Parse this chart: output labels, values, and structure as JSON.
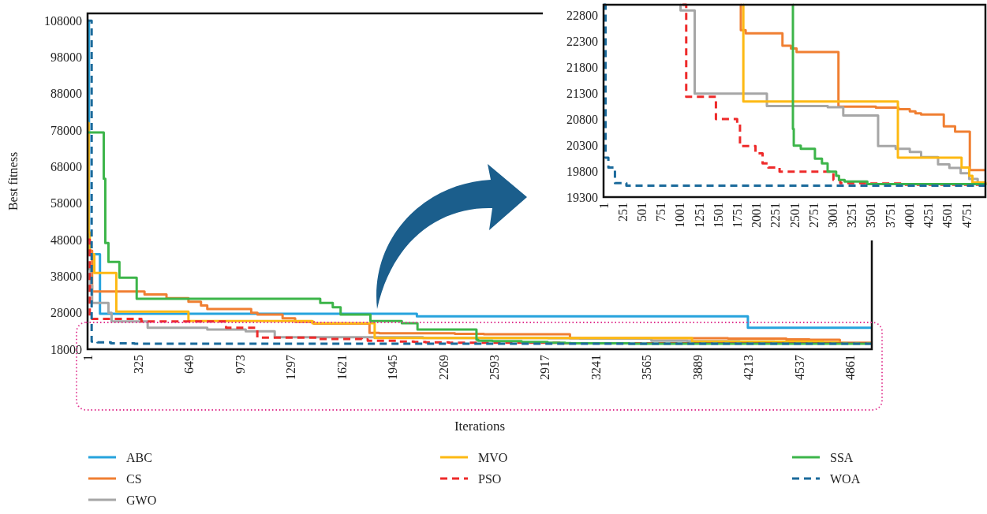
{
  "chart_data": [
    {
      "type": "step",
      "xlabel": "Iterations",
      "ylabel": "Best fitness",
      "xlim": [
        1,
        5000
      ],
      "ylim": [
        18000,
        110000
      ],
      "xticks": [
        1,
        325,
        649,
        973,
        1297,
        1621,
        1945,
        2269,
        2593,
        2917,
        3241,
        3565,
        3889,
        4213,
        4537,
        4861
      ],
      "yticks": [
        18000,
        28000,
        38000,
        48000,
        58000,
        68000,
        78000,
        88000,
        98000,
        108000
      ],
      "legend": "bottom",
      "series": [
        {
          "name": "ABC",
          "color": "#27a3dd",
          "x": [
            1,
            10,
            80,
            2100,
            4210,
            5000
          ],
          "values": [
            108000,
            44000,
            27700,
            27000,
            23900,
            23900
          ]
        },
        {
          "name": "CS",
          "color": "#f07f32",
          "x": [
            1,
            30,
            364,
            504,
            644,
            724,
            764,
            1044,
            1084,
            1244,
            1324,
            1444,
            1798,
            1861,
            2343,
            2454,
            2528,
            3076,
            3566,
            3862,
            4010,
            4084,
            4158,
            4455,
            4603,
            4796,
            5000
          ],
          "values": [
            45000,
            33800,
            33000,
            32000,
            31000,
            30000,
            29000,
            28000,
            27500,
            26500,
            25500,
            25000,
            22500,
            22400,
            22200,
            22200,
            22100,
            21000,
            21000,
            21000,
            21000,
            20900,
            20900,
            20700,
            20600,
            19800,
            19800
          ]
        },
        {
          "name": "GWO",
          "color": "#a6a6a6",
          "x": [
            1,
            20,
            30,
            134,
            154,
            384,
            764,
            1009,
            1194,
            2139,
            2936,
            3139,
            3595,
            3825,
            4010,
            4158,
            4380,
            4528,
            4676,
            4788,
            4899,
            5000
          ],
          "values": [
            40000,
            35500,
            30700,
            28000,
            25600,
            23900,
            23400,
            22900,
            21300,
            21100,
            21000,
            20900,
            20300,
            20200,
            20200,
            20100,
            19900,
            19900,
            19800,
            19700,
            19600,
            19600
          ]
        },
        {
          "name": "MVO",
          "color": "#fdb913",
          "x": [
            1,
            8,
            15,
            44,
            184,
            644,
            1434,
            1831,
            3854,
            4688,
            4788,
            4830,
            5000
          ],
          "values": [
            80000,
            50000,
            44000,
            38900,
            28300,
            25700,
            25100,
            21100,
            20100,
            19900,
            19700,
            19600,
            19600
          ]
        },
        {
          "name": "PSO",
          "color": "#ee2a2a",
          "line_style": "dashed",
          "x": [
            1,
            15,
            344,
            884,
            1083,
            1472,
            1750,
            1787,
            1990,
            2083,
            2157,
            2305,
            3010,
            5000
          ],
          "values": [
            48000,
            26300,
            25600,
            23900,
            21200,
            20800,
            20700,
            20300,
            20100,
            20000,
            19900,
            19800,
            19600,
            19600
          ]
        },
        {
          "name": "SSA",
          "color": "#3db54a",
          "x": [
            1,
            104,
            114,
            134,
            204,
            314,
            1484,
            1564,
            1614,
            1804,
            2004,
            2104,
            2480,
            2491,
            2583,
            2768,
            2860,
            2934,
            3046,
            3083,
            3157,
            3454,
            5000
          ],
          "values": [
            77400,
            64700,
            47100,
            41900,
            37600,
            31800,
            30700,
            29500,
            27500,
            25700,
            25100,
            23400,
            20600,
            20300,
            20200,
            20000,
            20000,
            19800,
            19700,
            19600,
            19600,
            19500,
            19500
          ]
        },
        {
          "name": "WOA",
          "color": "#1b6a9b",
          "line_style": "dashed",
          "x": [
            1,
            27,
            64,
            150,
            300,
            5000
          ],
          "values": [
            108000,
            20100,
            19900,
            19600,
            19500,
            19500
          ]
        }
      ]
    },
    {
      "type": "step",
      "xlim": [
        1,
        5000
      ],
      "ylim": [
        19300,
        23000
      ],
      "xticks": [
        1,
        251,
        501,
        751,
        1001,
        1251,
        1501,
        1751,
        2001,
        2251,
        2501,
        2751,
        3001,
        3251,
        3501,
        3751,
        4001,
        4251,
        4501,
        4751
      ],
      "yticks": [
        19300,
        19800,
        20300,
        20800,
        21300,
        21800,
        22300,
        22800
      ],
      "series": [
        {
          "color": "#f07f32",
          "x": [
            1797,
            1798,
            1861,
            2343,
            2454,
            2528,
            3076,
            3566,
            3862,
            4010,
            4084,
            4158,
            4455,
            4603,
            4796,
            5000
          ],
          "values": [
            23000,
            22510,
            22450,
            22210,
            22160,
            22090,
            21040,
            21020,
            20990,
            20950,
            20910,
            20890,
            20660,
            20560,
            19820,
            19820
          ]
        },
        {
          "color": "#a6a6a6",
          "x": [
            1008,
            1009,
            1194,
            2139,
            2936,
            3139,
            3595,
            3825,
            4010,
            4158,
            4380,
            4528,
            4676,
            4788,
            4899,
            5000
          ],
          "values": [
            23000,
            22890,
            21290,
            21050,
            21030,
            20870,
            20280,
            20230,
            20170,
            20070,
            19930,
            19860,
            19760,
            19650,
            19570,
            19570
          ]
        },
        {
          "color": "#fdb913",
          "x": [
            1830,
            1831,
            3854,
            4688,
            4788,
            4830,
            5000
          ],
          "values": [
            23000,
            21140,
            20060,
            19870,
            19710,
            19580,
            19550
          ]
        },
        {
          "color": "#ee2a2a",
          "line_style": "dashed",
          "x": [
            1034,
            1083,
            1472,
            1750,
            1787,
            1990,
            2083,
            2157,
            2305,
            3010,
            3100,
            3491,
            3900,
            5000
          ],
          "values": [
            23000,
            21230,
            20800,
            20720,
            20280,
            20140,
            19950,
            19870,
            19790,
            19630,
            19570,
            19560,
            19540,
            19540
          ]
        },
        {
          "color": "#3db54a",
          "x": [
            2479,
            2480,
            2491,
            2583,
            2768,
            2860,
            2934,
            3046,
            3083,
            3157,
            3454,
            5000
          ],
          "values": [
            23000,
            20610,
            20290,
            20230,
            20040,
            19950,
            19790,
            19710,
            19630,
            19600,
            19550,
            19530
          ]
        },
        {
          "color": "#1b6a9b",
          "line_style": "dashed",
          "x": [
            1,
            27,
            64,
            150,
            300,
            5000
          ],
          "values": [
            23000,
            20060,
            19870,
            19570,
            19520,
            19520
          ]
        }
      ]
    }
  ]
}
